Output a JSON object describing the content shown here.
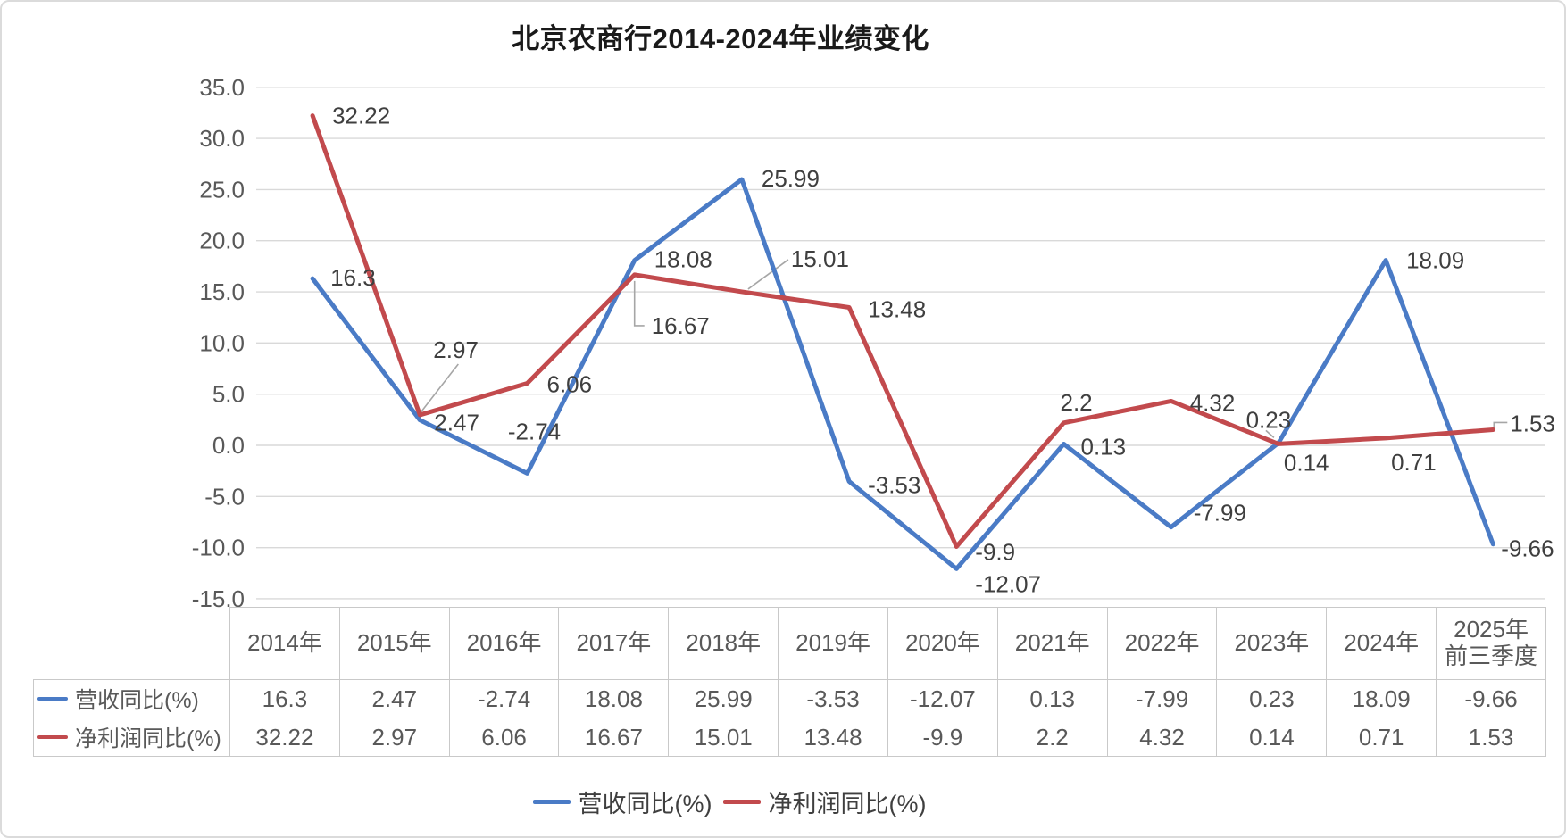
{
  "title": "北京农商行2014-2024年业绩变化",
  "chart_data": {
    "type": "line",
    "categories": [
      "2014年",
      "2015年",
      "2016年",
      "2017年",
      "2018年",
      "2019年",
      "2020年",
      "2021年",
      "2022年",
      "2023年",
      "2024年",
      "2025年\n前三季度"
    ],
    "series": [
      {
        "name": "营收同比(%)",
        "color": "#4A7BC6",
        "values": [
          "16.3",
          "2.47",
          "-2.74",
          "18.08",
          "25.99",
          "-3.53",
          "-12.07",
          "0.13",
          "-7.99",
          "0.23",
          "18.09",
          "-9.66"
        ]
      },
      {
        "name": "净利润同比(%)",
        "color": "#C24A4D",
        "values": [
          "32.22",
          "2.97",
          "6.06",
          "16.67",
          "15.01",
          "13.48",
          "-9.9",
          "2.2",
          "4.32",
          "0.14",
          "0.71",
          "1.53"
        ]
      }
    ],
    "title": "北京农商行2014-2024年业绩变化",
    "xlabel": "",
    "ylabel": "",
    "ylim": [
      -15,
      35
    ],
    "ytick_step": 5,
    "y_ticks": [
      "35.0",
      "30.0",
      "25.0",
      "20.0",
      "15.0",
      "10.0",
      "5.0",
      "0.0",
      "-5.0",
      "-10.0",
      "-15.0"
    ],
    "grid": true,
    "legend_position": "bottom",
    "data_table_shown": true
  },
  "colors": {
    "grid": "#D9D9D9",
    "axis_text": "#595959",
    "label_text": "#3F3F3F",
    "leader": "#A6A6A6",
    "table_border": "#C9C9C9",
    "table_text": "#595959"
  }
}
